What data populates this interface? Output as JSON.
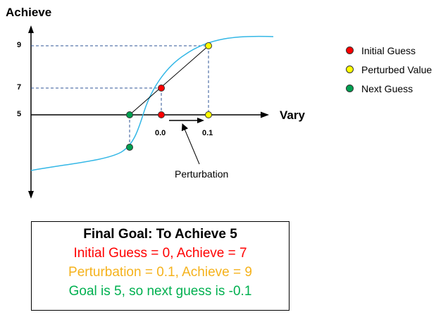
{
  "axes": {
    "y_title": "Achieve",
    "x_title": "Vary",
    "y_ticks": [
      "9",
      "7",
      "5"
    ],
    "x_ticks": [
      "0.0",
      "0.1"
    ]
  },
  "legend": [
    {
      "label": "Initial Guess",
      "color": "#ff0000"
    },
    {
      "label": "Perturbed Value",
      "color": "#ffff00"
    },
    {
      "label": "Next Guess",
      "color": "#00a050"
    }
  ],
  "annotation": "Perturbation",
  "goal_box": {
    "title": "Final Goal: To Achieve 5",
    "line1": "Initial Guess = 0, Achieve = 7",
    "line2": "Perturbation = 0.1, Achieve = 9",
    "line3": "Goal is 5, so next guess is -0.1"
  },
  "colors": {
    "curve": "#33b7e6",
    "initial": "#ff0000",
    "perturbed": "#ffff00",
    "next": "#00a050"
  }
}
